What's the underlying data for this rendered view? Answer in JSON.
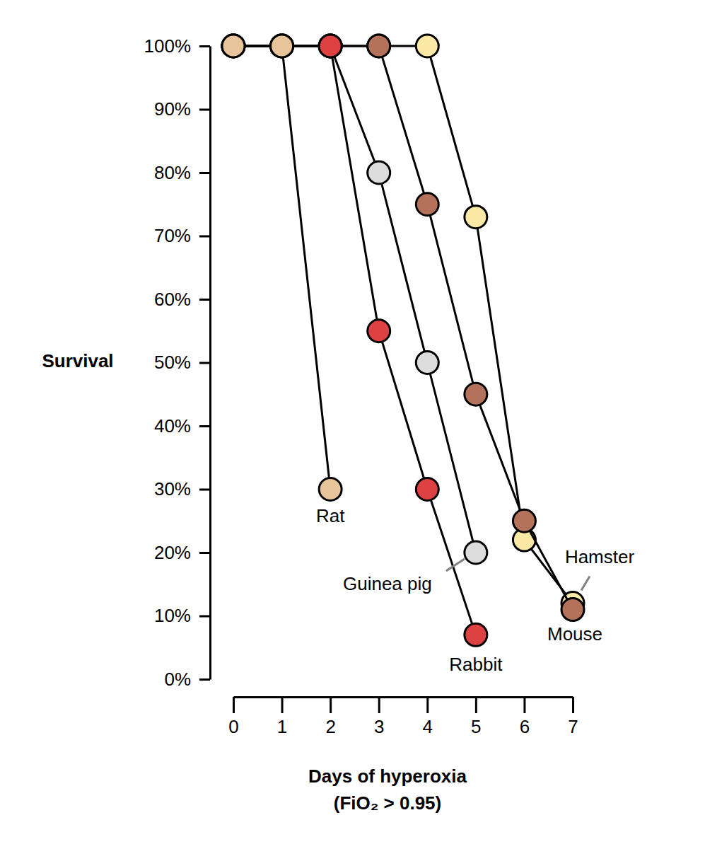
{
  "chart_data": {
    "type": "line",
    "y_label": "Survival",
    "x_label": [
      "Days of hyperoxia",
      "(FiO₂ > 0.95)"
    ],
    "x": [
      0,
      1,
      2,
      3,
      4,
      5,
      6,
      7
    ],
    "xlim": [
      0,
      7
    ],
    "xticks": [
      0,
      1,
      2,
      3,
      4,
      5,
      6,
      7
    ],
    "ylim": [
      0,
      100
    ],
    "yticks": [
      {
        "value": 0,
        "label": "0%"
      },
      {
        "value": 10,
        "label": "10%"
      },
      {
        "value": 20,
        "label": "20%"
      },
      {
        "value": 30,
        "label": "30%"
      },
      {
        "value": 40,
        "label": "40%"
      },
      {
        "value": 50,
        "label": "50%"
      },
      {
        "value": 60,
        "label": "60%"
      },
      {
        "value": 70,
        "label": "70%"
      },
      {
        "value": 80,
        "label": "80%"
      },
      {
        "value": 90,
        "label": "90%"
      },
      {
        "value": 100,
        "label": "100%"
      }
    ],
    "marker": "circle",
    "series": [
      {
        "name": "Hamster",
        "color": "#fde9a6",
        "values": [
          100,
          100,
          100,
          100,
          100,
          73,
          22,
          12
        ]
      },
      {
        "name": "Mouse",
        "color": "#b5725a",
        "values": [
          100,
          100,
          100,
          100,
          75,
          45,
          25,
          11
        ]
      },
      {
        "name": "Guinea pig",
        "color": "#dcdcdc",
        "values": [
          100,
          100,
          100,
          80,
          50,
          20,
          null,
          null
        ]
      },
      {
        "name": "Rabbit",
        "color": "#dd4141",
        "values": [
          100,
          100,
          100,
          55,
          30,
          7,
          null,
          null
        ]
      },
      {
        "name": "Rat",
        "color": "#e8c49b",
        "values": [
          100,
          100,
          30,
          null,
          null,
          null,
          null,
          null
        ]
      }
    ]
  }
}
